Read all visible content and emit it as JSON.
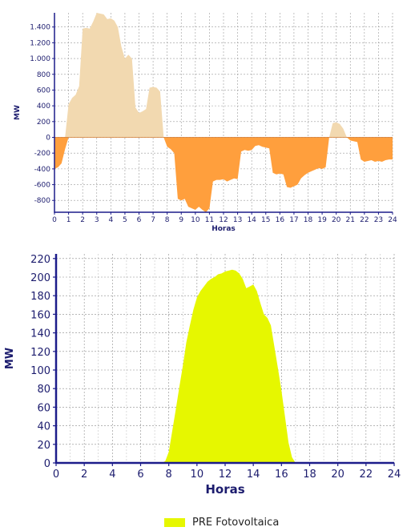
{
  "chart_data": [
    {
      "type": "area",
      "xlabel": "Horas",
      "ylabel": "MW",
      "xlim": [
        0,
        24
      ],
      "ylim": [
        -950,
        1580
      ],
      "xticks": [
        0,
        1,
        2,
        3,
        4,
        5,
        6,
        7,
        8,
        9,
        10,
        11,
        12,
        13,
        14,
        15,
        16,
        17,
        18,
        19,
        20,
        21,
        22,
        23,
        24
      ],
      "yticks": [
        -800,
        -600,
        -400,
        -200,
        0,
        200,
        400,
        600,
        800,
        1000,
        1200,
        1400
      ],
      "ytick_labels": [
        "-800",
        "-600",
        "-400",
        "-200",
        "0",
        "200",
        "400",
        "600",
        "800",
        "1.000",
        "1.200",
        "1.400"
      ],
      "grid": true,
      "colors": {
        "positive": "#f2d9b0",
        "negative": "#ff9f3d",
        "axis": "#1c1c8a"
      },
      "series": [
        {
          "x": [
            0,
            0.25,
            0.5,
            0.75,
            1.0,
            1.25,
            1.5,
            1.75,
            2.0,
            2.25,
            2.5,
            2.75,
            3.0,
            3.25,
            3.5,
            3.75,
            4.0,
            4.25,
            4.5,
            4.75,
            5.0,
            5.25,
            5.5,
            5.75,
            6.0,
            6.25,
            6.5,
            6.75,
            7.0,
            7.25,
            7.5,
            7.75,
            8.0,
            8.25,
            8.5,
            8.75,
            9.0,
            9.25,
            9.5,
            9.75,
            10.0,
            10.25,
            10.5,
            10.75,
            11.0,
            11.25,
            11.5,
            11.75,
            12.0,
            12.25,
            12.5,
            12.75,
            13.0,
            13.25,
            13.5,
            13.75,
            14.0,
            14.25,
            14.5,
            14.75,
            15.0,
            15.25,
            15.5,
            15.75,
            16.0,
            16.25,
            16.5,
            16.75,
            17.0,
            17.25,
            17.5,
            17.75,
            18.0,
            18.25,
            18.5,
            18.75,
            19.0,
            19.25,
            19.5,
            19.75,
            20.0,
            20.25,
            20.5,
            20.75,
            21.0,
            21.25,
            21.5,
            21.75,
            22.0,
            22.25,
            22.5,
            22.75,
            23.0,
            23.25,
            23.5,
            23.75
          ],
          "values": [
            -400,
            -380,
            -330,
            -150,
            420,
            500,
            540,
            650,
            1380,
            1390,
            1380,
            1470,
            1580,
            1570,
            1560,
            1500,
            1510,
            1480,
            1400,
            1150,
            1000,
            1050,
            1000,
            380,
            310,
            330,
            360,
            630,
            640,
            630,
            580,
            0,
            -120,
            -150,
            -200,
            -780,
            -800,
            -780,
            -880,
            -900,
            -920,
            -880,
            -920,
            -950,
            -900,
            -560,
            -540,
            -540,
            -530,
            -560,
            -540,
            -520,
            -530,
            -180,
            -160,
            -170,
            -160,
            -110,
            -100,
            -120,
            -130,
            -140,
            -450,
            -470,
            -460,
            -470,
            -630,
            -640,
            -620,
            -600,
            -520,
            -480,
            -450,
            -430,
            -410,
            -390,
            -400,
            -380,
            0,
            180,
            190,
            170,
            110,
            0,
            -40,
            -50,
            -60,
            -280,
            -310,
            -300,
            -290,
            -310,
            -300,
            -310,
            -290,
            -280
          ]
        }
      ]
    },
    {
      "type": "area",
      "xlabel": "Horas",
      "ylabel": "MW",
      "xlim": [
        0,
        24
      ],
      "ylim": [
        0,
        225
      ],
      "xticks": [
        0,
        2,
        4,
        6,
        8,
        10,
        12,
        14,
        16,
        18,
        20,
        22,
        24
      ],
      "yticks": [
        0,
        20,
        40,
        60,
        80,
        100,
        120,
        140,
        160,
        180,
        200,
        220
      ],
      "grid": true,
      "legend": "bottom-center",
      "colors": {
        "fill": "#e6f700",
        "axis": "#1c1c8a"
      },
      "series": [
        {
          "name": "PRE Fotovoltaica",
          "x": [
            0,
            7.5,
            7.75,
            8.0,
            8.25,
            8.5,
            8.75,
            9.0,
            9.25,
            9.5,
            9.75,
            10.0,
            10.25,
            10.5,
            10.75,
            11.0,
            11.25,
            11.5,
            11.75,
            12.0,
            12.25,
            12.5,
            12.75,
            13.0,
            13.25,
            13.5,
            13.75,
            14.0,
            14.25,
            14.5,
            14.75,
            15.0,
            15.25,
            15.5,
            15.75,
            16.0,
            16.25,
            16.5,
            16.75,
            17.0,
            24
          ],
          "values": [
            0,
            0,
            2,
            12,
            35,
            58,
            82,
            105,
            130,
            148,
            165,
            178,
            185,
            190,
            195,
            198,
            200,
            203,
            204,
            206,
            207,
            208,
            207,
            204,
            198,
            188,
            190,
            192,
            185,
            172,
            160,
            156,
            148,
            125,
            102,
            78,
            50,
            22,
            6,
            0,
            0
          ]
        }
      ]
    }
  ]
}
